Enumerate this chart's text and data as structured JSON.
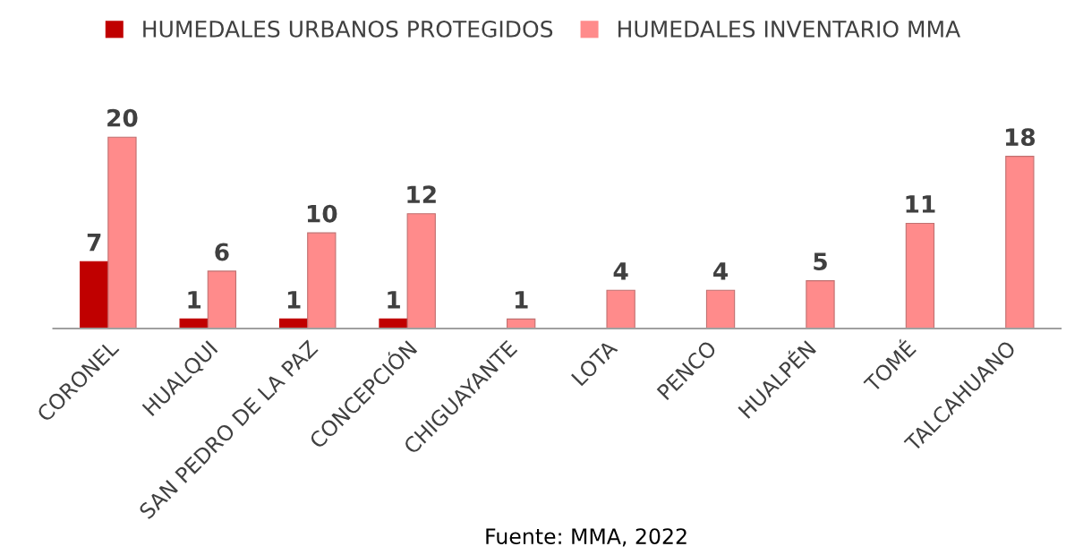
{
  "chart_data": {
    "type": "bar",
    "categories": [
      "CORONEL",
      "HUALQUI",
      "SAN PEDRO DE LA PAZ",
      "CONCEPCIÓN",
      "CHIGUAYANTE",
      "LOTA",
      "PENCO",
      "HUALPÉN",
      "TOMÉ",
      "TALCAHUANO"
    ],
    "series": [
      {
        "name": "HUMEDALES URBANOS PROTEGIDOS",
        "color": "#c00000",
        "values": [
          7,
          1,
          1,
          1,
          null,
          null,
          null,
          null,
          null,
          null
        ]
      },
      {
        "name": "HUMEDALES INVENTARIO MMA",
        "color": "#ff8b8b",
        "values": [
          20,
          6,
          10,
          12,
          1,
          4,
          4,
          5,
          11,
          18
        ]
      }
    ],
    "data_labels": true,
    "legend": "top",
    "grid": false,
    "annotations": [
      "Fuente: MMA, 2022"
    ]
  }
}
